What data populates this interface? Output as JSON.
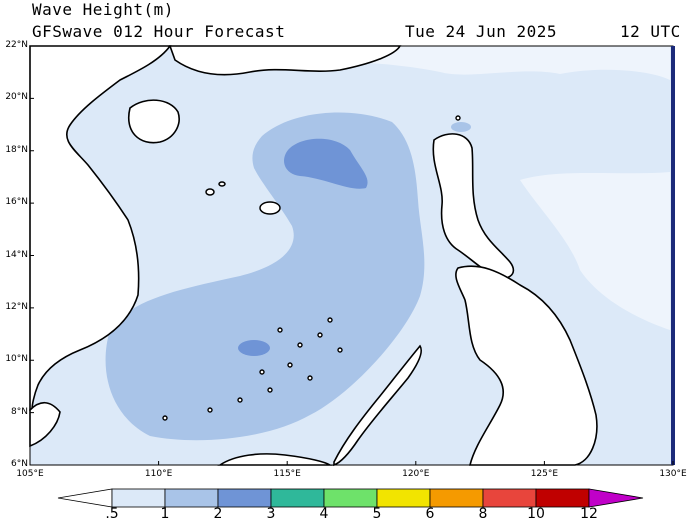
{
  "title": {
    "line1": "Wave Height(m)",
    "line2": "GFSwave 012 Hour Forecast",
    "date": "Tue 24 Jun 2025",
    "time": "12 UTC"
  },
  "map": {
    "lat_labels": [
      "22°N",
      "20°N",
      "18°N",
      "16°N",
      "14°N",
      "12°N",
      "10°N",
      "8°N",
      "6°N"
    ],
    "lon_labels": [
      "105°E",
      "110°E",
      "115°E",
      "120°E",
      "125°E",
      "130°E"
    ],
    "lat_range": [
      6,
      22
    ],
    "lon_range": [
      105,
      130
    ]
  },
  "colorbar": {
    "labels": [
      ".5",
      "1",
      "2",
      "3",
      "4",
      "5",
      "6",
      "8",
      "10",
      "12"
    ],
    "colors": [
      "#ffffff",
      "#dce9f8",
      "#a9c4e8",
      "#6f94d6",
      "#2fb89a",
      "#6ee26a",
      "#f2e400",
      "#f59a00",
      "#e8453c",
      "#c00000",
      "#c000c8"
    ]
  },
  "legend_colors": {
    "land": "#ffffff",
    "sea_lt_1m": "#dce9f8",
    "sea_1_2m": "#a9c4e8",
    "sea_2_3m": "#6f94d6"
  }
}
